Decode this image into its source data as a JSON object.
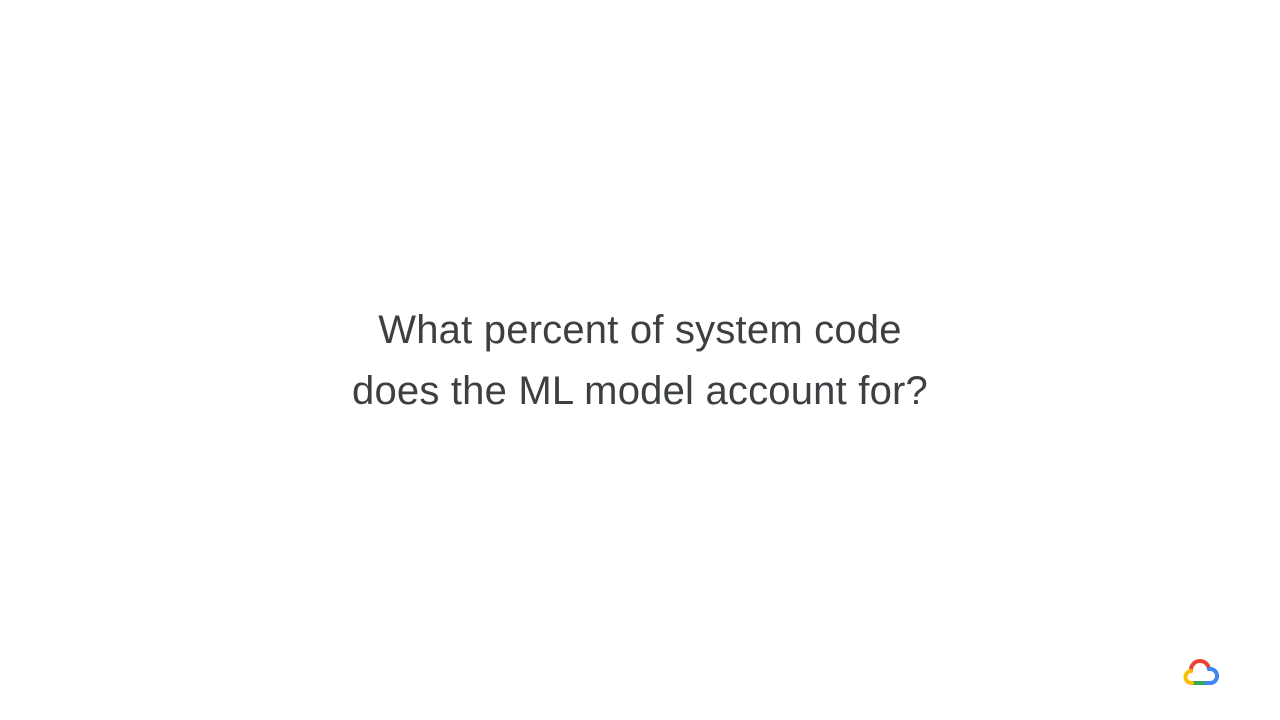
{
  "slide": {
    "question_line_1": "What percent of system code",
    "question_line_2": "does the ML model account for?"
  },
  "logo": {
    "icon": "google-cloud-icon",
    "colors": {
      "red": "#ea4335",
      "blue": "#4285f4",
      "green": "#34a853",
      "yellow": "#fbbc04"
    }
  },
  "colors": {
    "background": "#ffffff",
    "text": "#3c4043"
  }
}
